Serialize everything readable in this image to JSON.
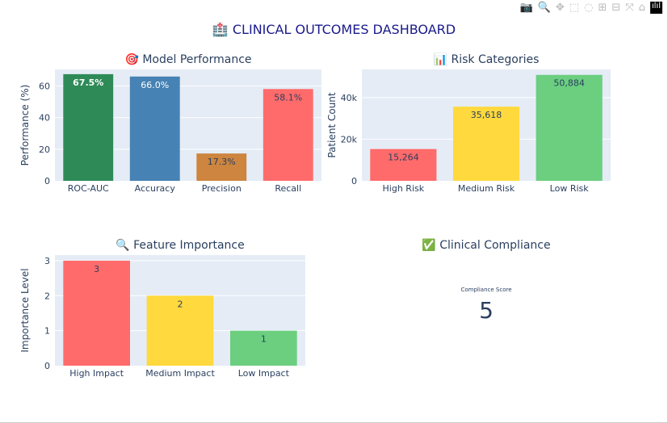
{
  "modebar": {
    "icons": [
      "camera-icon",
      "zoom-icon",
      "pan-icon",
      "box-select-icon",
      "lasso-icon",
      "zoom-in-icon",
      "zoom-out-icon",
      "autoscale-icon",
      "home-icon",
      "plotly-logo-icon"
    ]
  },
  "title": "🏥 CLINICAL OUTCOMES DASHBOARD",
  "chart_data": [
    {
      "type": "bar",
      "title": "🎯 Model Performance",
      "ylabel": "Performance (%)",
      "xlabel": "",
      "categories": [
        "ROC-AUC",
        "Accuracy",
        "Precision",
        "Recall"
      ],
      "values": [
        67.5,
        66.0,
        17.3,
        58.1
      ],
      "labels": [
        "67.5%",
        "66.0%",
        "17.3%",
        "58.1%"
      ],
      "colors": [
        "#2E8B57",
        "#4682B4",
        "#CD853F",
        "#FF6B6B"
      ],
      "label_colors": [
        "#ffffff",
        "#ffffff",
        "#2a3f5f",
        "#2a3f5f"
      ],
      "ylim": [
        0,
        70.5
      ],
      "yticks": [
        0,
        20,
        40,
        60
      ],
      "ytick_labels": [
        "0",
        "20",
        "40",
        "60"
      ],
      "grid": true
    },
    {
      "type": "bar",
      "title": "📊 Risk Categories",
      "ylabel": "Patient Count",
      "xlabel": "",
      "categories": [
        "High Risk",
        "Medium Risk",
        "Low Risk"
      ],
      "values": [
        15264,
        35618,
        50884
      ],
      "labels": [
        "15,264",
        "35,618",
        "50,884"
      ],
      "colors": [
        "#FF6B6B",
        "#FFD93D",
        "#6BCF7F"
      ],
      "label_colors": [
        "#2a3f5f",
        "#2a3f5f",
        "#2a3f5f"
      ],
      "ylim": [
        0,
        53500
      ],
      "yticks": [
        0,
        20000,
        40000
      ],
      "ytick_labels": [
        "0",
        "20k",
        "40k"
      ],
      "grid": true
    },
    {
      "type": "bar",
      "title": "🔍 Feature Importance",
      "ylabel": "Importance Level",
      "xlabel": "",
      "categories": [
        "High Impact",
        "Medium Impact",
        "Low Impact"
      ],
      "values": [
        3,
        2,
        1
      ],
      "labels": [
        "3",
        "2",
        "1"
      ],
      "colors": [
        "#FF6B6B",
        "#FFD93D",
        "#6BCF7F"
      ],
      "label_colors": [
        "#2a3f5f",
        "#2a3f5f",
        "#2a3f5f"
      ],
      "ylim": [
        0,
        3.16
      ],
      "yticks": [
        0,
        1,
        2,
        3
      ],
      "ytick_labels": [
        "0",
        "1",
        "2",
        "3"
      ],
      "grid": true
    }
  ],
  "indicator": {
    "title": "✅ Clinical Compliance",
    "label": "Compliance Score",
    "value": "5"
  }
}
